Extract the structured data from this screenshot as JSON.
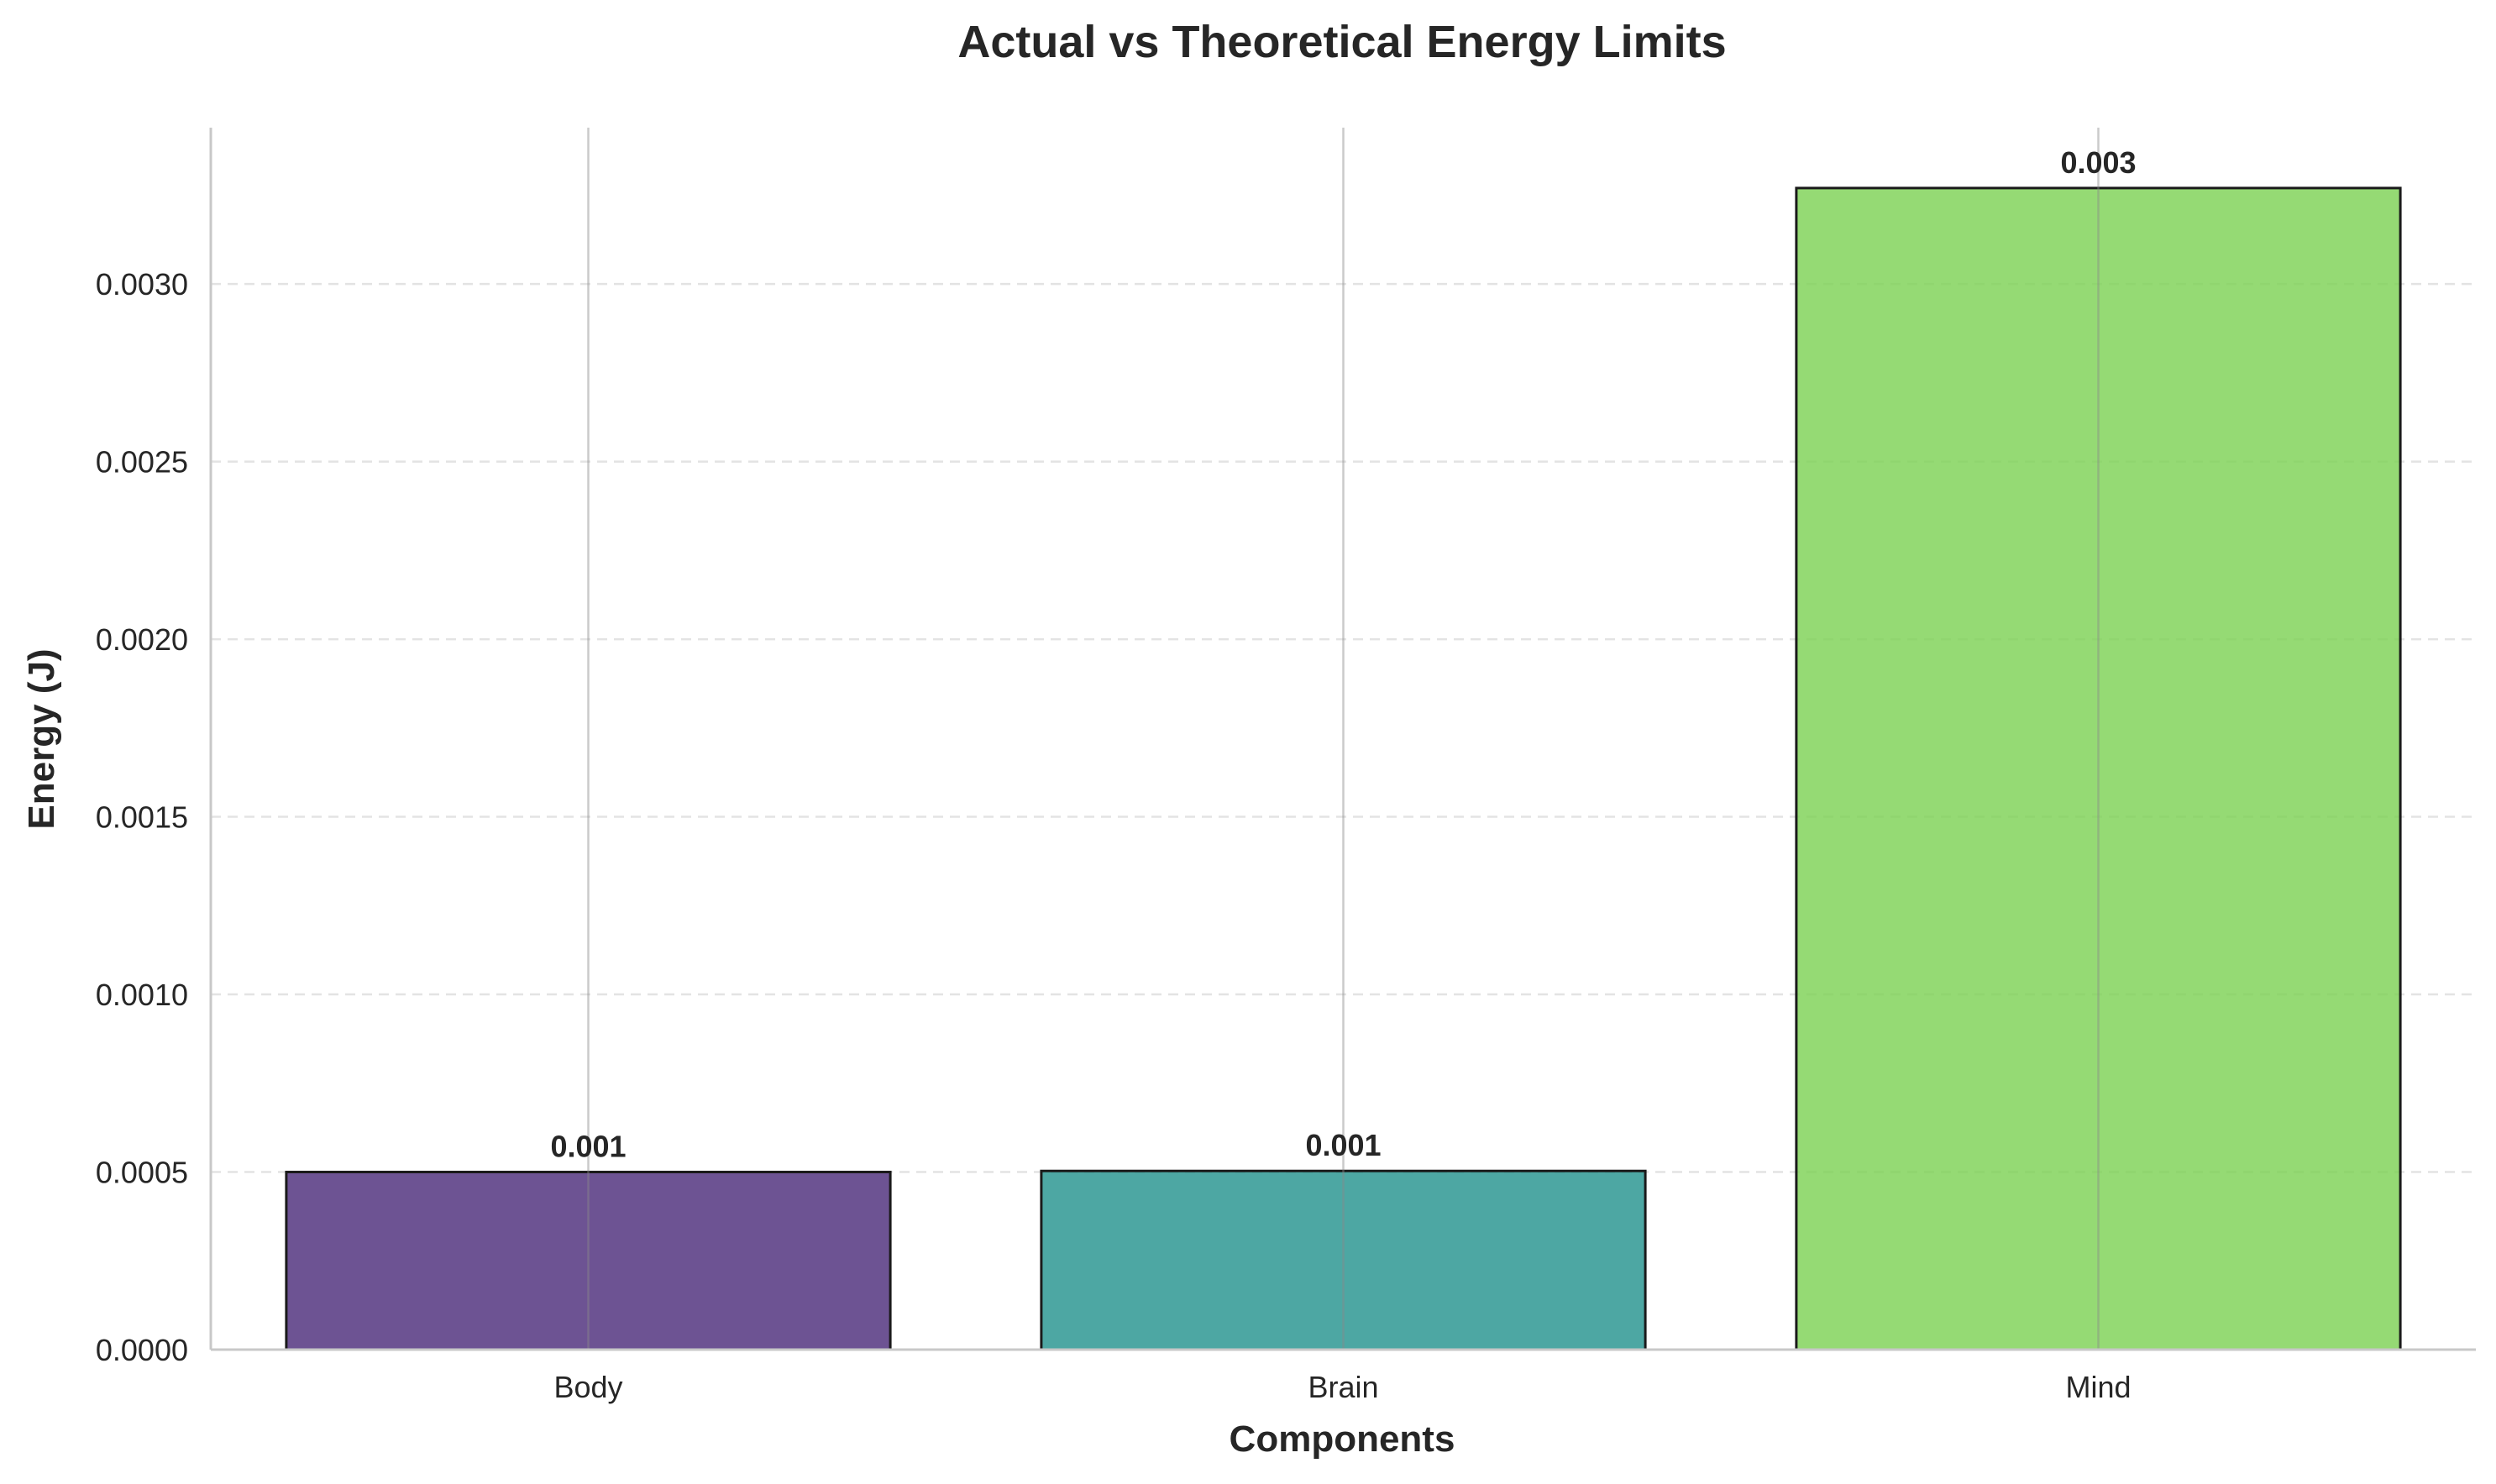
{
  "chart_data": {
    "type": "bar",
    "title": "Actual vs Theoretical Energy Limits",
    "xlabel": "Components",
    "ylabel": "Energy (J)",
    "categories": [
      "Body",
      "Brain",
      "Mind"
    ],
    "values": [
      0.0005,
      0.000503,
      0.00327
    ],
    "data_labels": [
      "0.001",
      "0.001",
      "0.003"
    ],
    "colors": [
      "#482878",
      "#21918c",
      "#7ad151"
    ],
    "ylim": [
      0,
      0.00344
    ],
    "yticks": [
      0,
      0.0005,
      0.001,
      0.0015,
      0.002,
      0.0025,
      0.003
    ],
    "ytick_labels": [
      "0.0000",
      "0.0005",
      "0.0010",
      "0.0015",
      "0.0020",
      "0.0025",
      "0.0030"
    ],
    "grid": true,
    "legend": "none"
  }
}
